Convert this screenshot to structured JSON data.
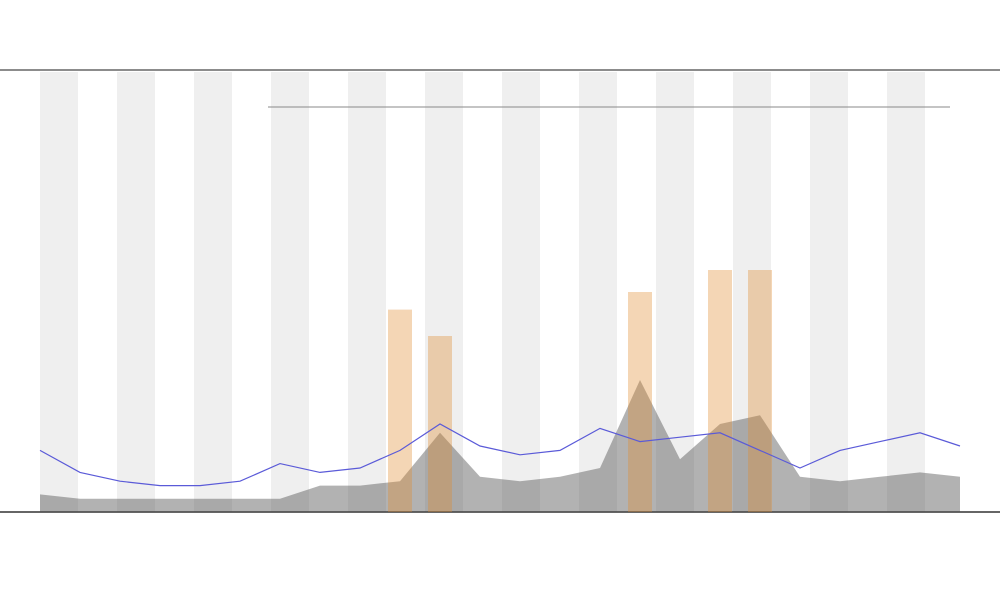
{
  "chart_data": {
    "type": "line",
    "x": [
      0,
      1,
      2,
      3,
      4,
      5,
      6,
      7,
      8,
      9,
      10,
      11,
      12,
      13,
      14,
      15,
      16,
      17,
      18,
      19,
      20,
      21,
      22,
      23
    ],
    "xlim": [
      0,
      23
    ],
    "ylim": [
      0,
      100
    ],
    "series": [
      {
        "color": "#5a5ad8",
        "values": [
          14,
          9,
          7,
          6,
          6,
          7,
          11,
          9,
          10,
          14,
          20,
          15,
          13,
          14,
          19,
          16,
          17,
          18,
          14,
          10,
          14,
          16,
          18,
          15
        ]
      },
      {
        "color": "#555555",
        "values": [
          4,
          3,
          3,
          3,
          3,
          3,
          3,
          6,
          6,
          7,
          18,
          8,
          7,
          8,
          10,
          30,
          12,
          20,
          22,
          8,
          7,
          8,
          9,
          8
        ]
      },
      {
        "color": "#e08a2a",
        "values": [
          0,
          0,
          0,
          0,
          0,
          0,
          0,
          0,
          0,
          46,
          40,
          0,
          0,
          0,
          0,
          50,
          0,
          55,
          55,
          0,
          0,
          0,
          0,
          0
        ]
      }
    ]
  }
}
